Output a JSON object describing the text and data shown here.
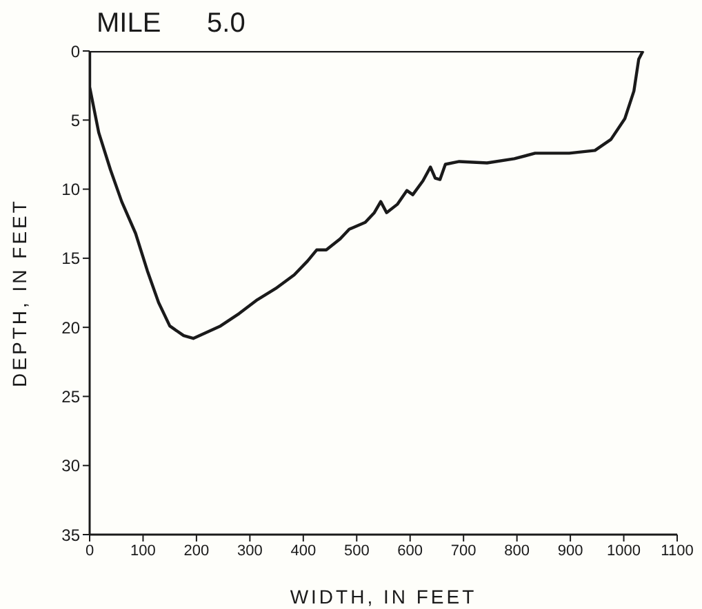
{
  "chart_data": {
    "type": "line",
    "title": "MILE      5.0",
    "xlabel": "WIDTH, IN FEET",
    "ylabel": "DEPTH, IN FEET",
    "xlim": [
      0,
      1100
    ],
    "xticks": [
      0,
      100,
      200,
      300,
      400,
      500,
      600,
      700,
      800,
      900,
      1000,
      1100
    ],
    "ylim": [
      35,
      0
    ],
    "yticks": [
      0,
      5,
      10,
      15,
      20,
      25,
      30,
      35
    ],
    "marker": "none",
    "line_style": "solid",
    "series": [
      {
        "color": "#1a1a1a",
        "x": [
          0,
          0,
          17,
          39,
          60,
          86,
          108,
          129,
          150,
          176,
          194,
          211,
          245,
          280,
          314,
          348,
          383,
          408,
          425,
          443,
          469,
          486,
          516,
          533,
          545,
          556,
          576,
          594,
          605,
          624,
          638,
          647,
          656,
          666,
          692,
          744,
          795,
          834,
          898,
          946,
          976,
          1002,
          1019,
          1028,
          1036
        ],
        "values": [
          0,
          2.6,
          5.9,
          8.6,
          10.9,
          13.2,
          15.9,
          18.2,
          19.9,
          20.6,
          20.8,
          20.5,
          19.9,
          19.0,
          18.0,
          17.2,
          16.2,
          15.2,
          14.4,
          14.4,
          13.6,
          12.9,
          12.4,
          11.7,
          10.9,
          11.7,
          11.1,
          10.1,
          10.4,
          9.4,
          8.4,
          9.2,
          9.3,
          8.2,
          8.0,
          8.1,
          7.8,
          7.4,
          7.4,
          7.2,
          6.4,
          4.9,
          2.9,
          0.6,
          0
        ]
      },
      {
        "color": "#1a1a1a",
        "x": [
          0,
          1036
        ],
        "values": [
          0,
          0
        ]
      }
    ]
  }
}
